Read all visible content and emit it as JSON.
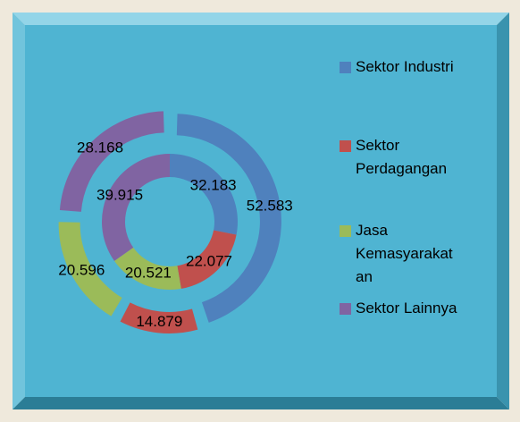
{
  "chart_data": {
    "type": "doughnut",
    "categories": [
      "Sektor Industri",
      "Sektor Perdagangan",
      "Jasa Kemasyarakatan",
      "Sektor Lainnya"
    ],
    "colors": [
      "#4f81bd",
      "#c0504d",
      "#9bbb59",
      "#8064a2"
    ],
    "series": [
      {
        "values": [
          32.183,
          22.077,
          20.521,
          39.915
        ]
      },
      {
        "values": [
          52.583,
          14.879,
          20.596,
          28.168
        ]
      }
    ]
  }
}
